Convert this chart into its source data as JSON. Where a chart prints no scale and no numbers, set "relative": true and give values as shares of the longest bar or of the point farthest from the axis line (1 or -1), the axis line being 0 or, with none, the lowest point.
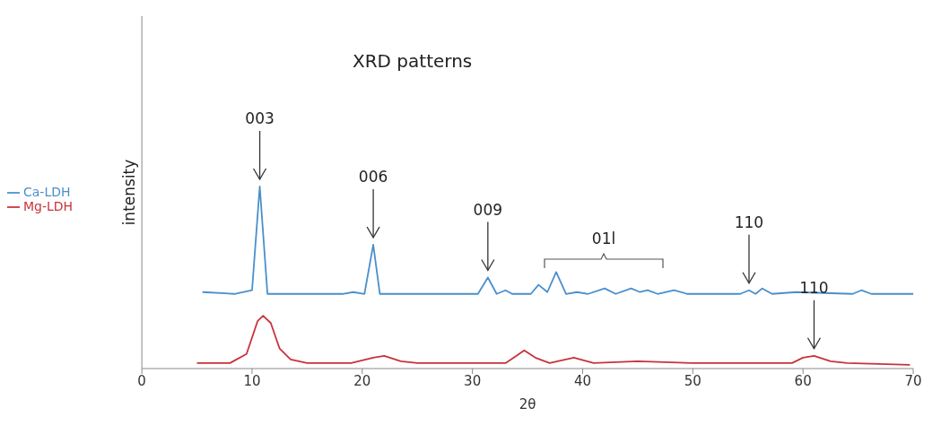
{
  "chart_data": {
    "type": "line",
    "title": "XRD patterns",
    "xlabel": "2θ",
    "ylabel": "intensity",
    "relative": true,
    "xlim": [
      0,
      70
    ],
    "xticks": [
      0,
      10,
      20,
      30,
      40,
      50,
      60,
      70
    ],
    "grid": false,
    "legend": "left",
    "marker": "none",
    "series": [
      {
        "name": "Ca-LDH",
        "color": "#4a8fcc",
        "x": [
          5.5,
          8.4,
          10.0,
          10.7,
          11.4,
          18.2,
          19.2,
          20.2,
          21.0,
          21.6,
          28.0,
          30.5,
          31.4,
          32.2,
          33.0,
          33.6,
          35.3,
          36.0,
          36.8,
          37.6,
          38.5,
          39.5,
          40.5,
          42.0,
          43.0,
          44.4,
          45.2,
          45.9,
          46.8,
          48.3,
          49.5,
          54.3,
          55.1,
          55.7,
          56.3,
          57.2,
          59.4,
          64.5,
          65.3,
          66.2,
          70.0
        ],
        "values": [
          0.42,
          0.41,
          0.43,
          1.0,
          0.41,
          0.41,
          0.42,
          0.41,
          0.68,
          0.41,
          0.41,
          0.41,
          0.5,
          0.41,
          0.43,
          0.41,
          0.41,
          0.46,
          0.42,
          0.53,
          0.41,
          0.42,
          0.41,
          0.44,
          0.41,
          0.44,
          0.42,
          0.43,
          0.41,
          0.43,
          0.41,
          0.41,
          0.43,
          0.41,
          0.44,
          0.41,
          0.42,
          0.41,
          0.43,
          0.41,
          0.41
        ]
      },
      {
        "name": "Mg-LDH",
        "color": "#c8323c",
        "x": [
          5.0,
          8.0,
          9.5,
          10.5,
          11.0,
          11.7,
          12.5,
          13.5,
          15.0,
          19.0,
          21.0,
          22.0,
          23.5,
          25.0,
          33.0,
          34.0,
          34.7,
          35.7,
          37.0,
          39.2,
          41.0,
          45.0,
          50.0,
          59.0,
          60.0,
          61.0,
          62.5,
          64.0,
          69.7
        ],
        "values": [
          0.03,
          0.03,
          0.08,
          0.26,
          0.29,
          0.25,
          0.11,
          0.05,
          0.03,
          0.03,
          0.06,
          0.07,
          0.04,
          0.03,
          0.03,
          0.07,
          0.1,
          0.06,
          0.03,
          0.06,
          0.03,
          0.04,
          0.03,
          0.03,
          0.06,
          0.07,
          0.04,
          0.03,
          0.02
        ]
      }
    ],
    "annotations": [
      {
        "text": "003",
        "x": 10.7,
        "y": 1.0
      },
      {
        "text": "006",
        "x": 21.0,
        "y": 0.68
      },
      {
        "text": "009",
        "x": 31.4,
        "y": 0.5
      },
      "01l",
      {
        "text": "110",
        "x": 61.0,
        "y": 0.07
      },
      {
        "text": "110",
        "x": 55.1,
        "y": 0.43
      }
    ]
  }
}
